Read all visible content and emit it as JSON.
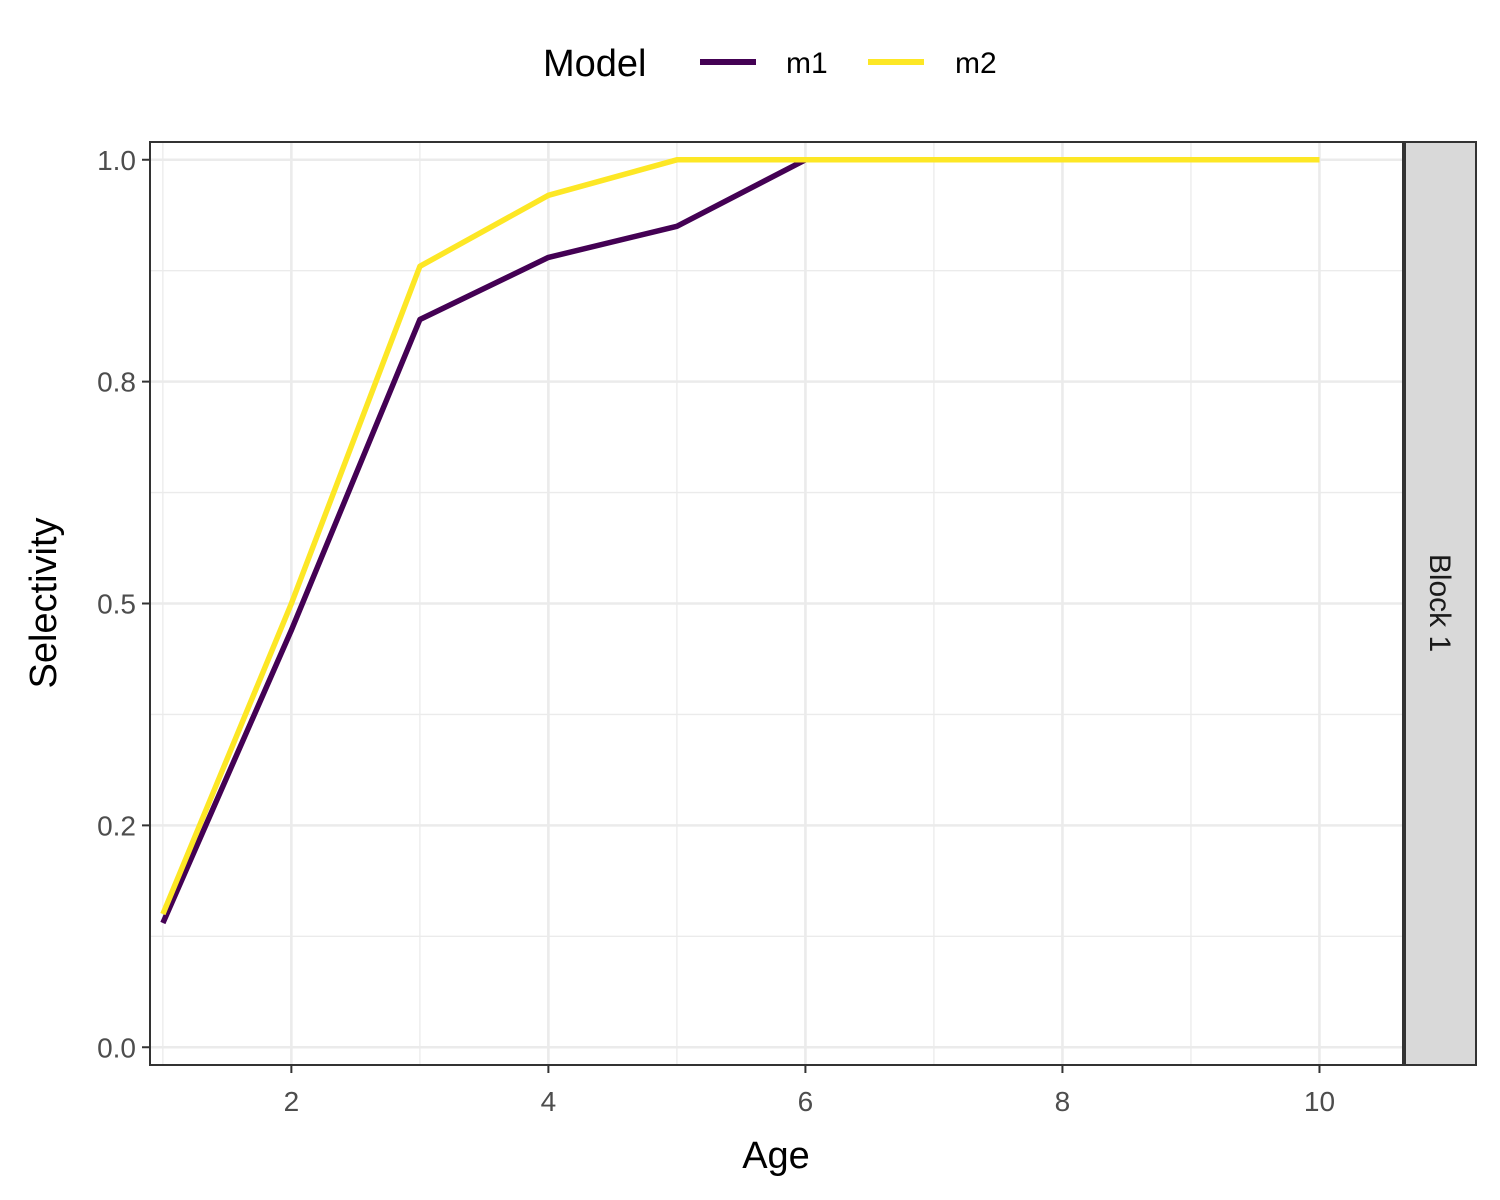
{
  "chart_data": {
    "type": "line",
    "x": [
      1,
      2,
      3,
      4,
      5,
      6,
      7,
      8,
      9,
      10
    ],
    "series": [
      {
        "name": "m1",
        "color": "#440154",
        "values": [
          0.14,
          0.47,
          0.82,
          0.89,
          0.925,
          1.0,
          1.0,
          1.0,
          1.0,
          1.0
        ]
      },
      {
        "name": "m2",
        "color": "#FDE725",
        "values": [
          0.15,
          0.5,
          0.88,
          0.96,
          1.0,
          1.0,
          1.0,
          1.0,
          1.0,
          1.0
        ]
      }
    ],
    "xlabel": "Age",
    "ylabel": "Selectivity",
    "xlim": [
      0.9,
      10.65
    ],
    "ylim": [
      -0.02,
      1.02
    ],
    "x_ticks": [
      2,
      4,
      6,
      8,
      10
    ],
    "x_tick_labels": [
      "2",
      "4",
      "6",
      "8",
      "10"
    ],
    "y_ticks": [
      0.0,
      0.25,
      0.5,
      0.75,
      1.0
    ],
    "y_tick_labels": [
      "0.0",
      "0.2",
      "0.5",
      "0.8",
      "1.0"
    ],
    "grid": true,
    "legend": {
      "title": "Model",
      "position": "top",
      "labels": [
        "m1",
        "m2"
      ]
    },
    "facet_label": "Block 1"
  }
}
